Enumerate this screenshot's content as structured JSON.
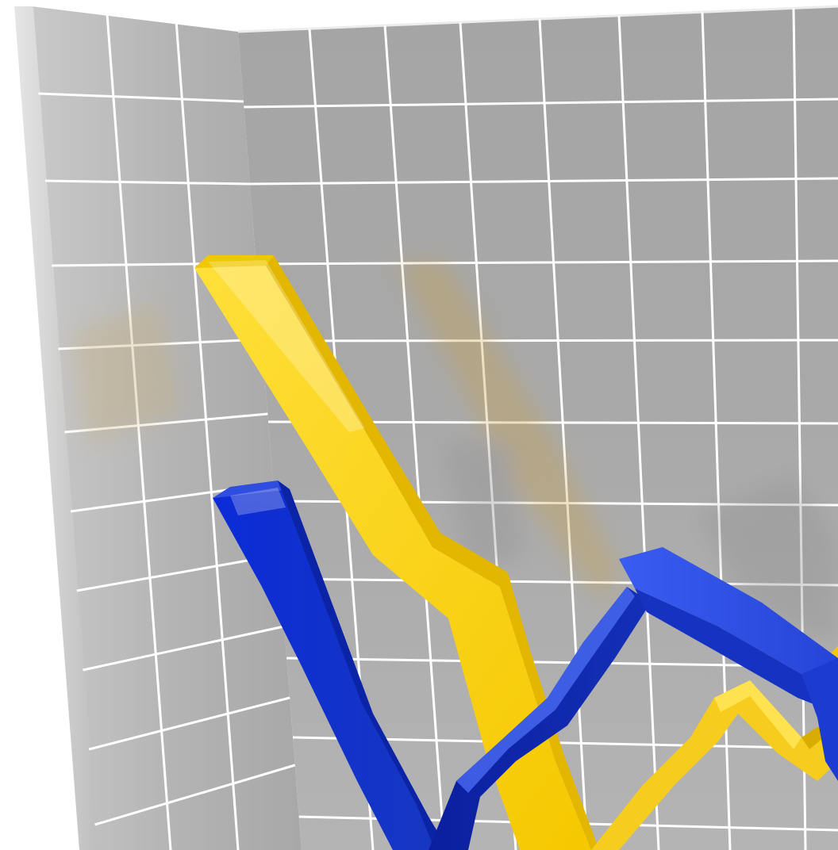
{
  "image": {
    "kind": "3d-rendered-line-graph-illustration",
    "background_color": "#ffffff",
    "wall_color": "#a9a9a9",
    "grid_line_color": "#ffffff",
    "series_colors": {
      "yellow-ribbon": "#f7cf12",
      "blue-ribbon": "#1531c9"
    },
    "visible_text": []
  }
}
